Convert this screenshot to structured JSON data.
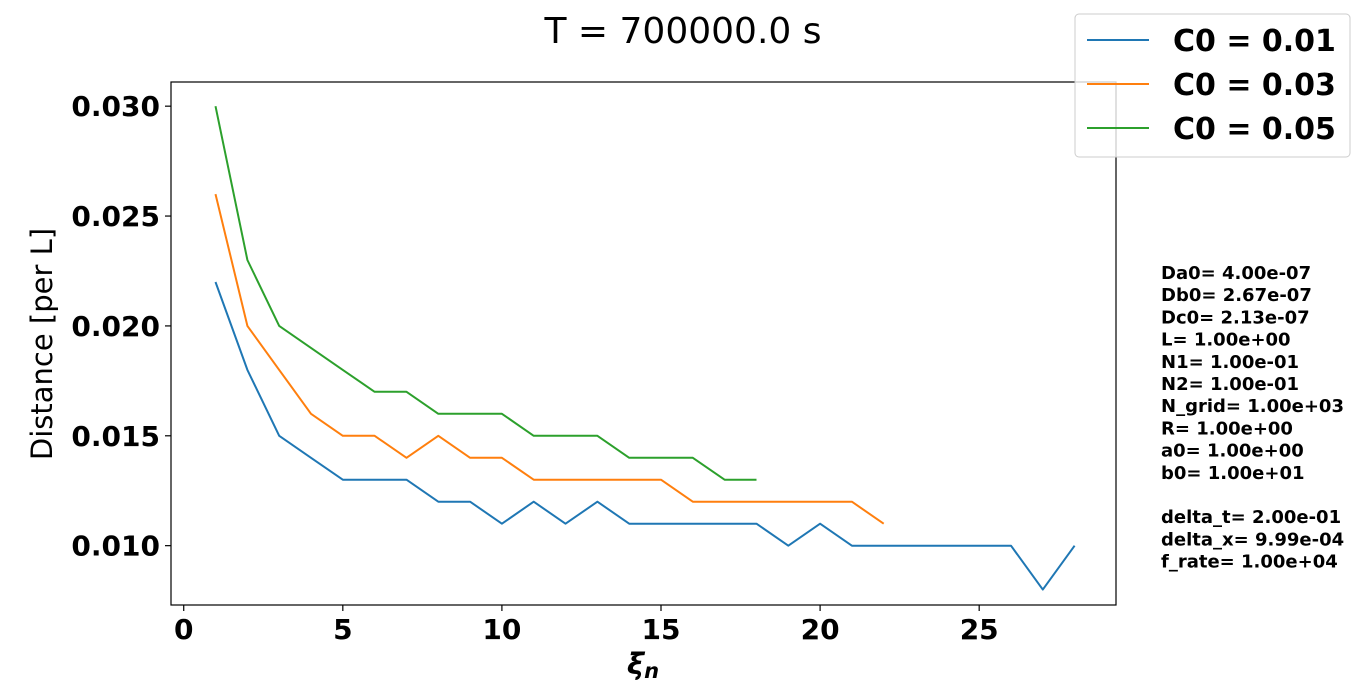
{
  "chart_data": {
    "type": "line",
    "title": "T = 700000.0 s",
    "xlabel": "ξ",
    "xlabel_sub": "n",
    "ylabel": "Distance [per L]",
    "xlim": [
      -0.4,
      29.3
    ],
    "ylim": [
      0.0073,
      0.0311
    ],
    "x_ticks": [
      0,
      5,
      10,
      15,
      20,
      25
    ],
    "x_tick_labels": [
      "0",
      "5",
      "10",
      "15",
      "20",
      "25"
    ],
    "y_ticks": [
      0.01,
      0.015,
      0.02,
      0.025,
      0.03
    ],
    "y_tick_labels": [
      "0.010",
      "0.015",
      "0.020",
      "0.025",
      "0.030"
    ],
    "grid": false,
    "legend_position": "top-right (outside)",
    "series": [
      {
        "name": "C0 = 0.01",
        "color": "#1f77b4",
        "x": [
          1,
          2,
          3,
          4,
          5,
          6,
          7,
          8,
          9,
          10,
          11,
          12,
          13,
          14,
          15,
          16,
          17,
          18,
          19,
          20,
          21,
          22,
          23,
          24,
          25,
          26,
          27,
          28
        ],
        "y": [
          0.022,
          0.018,
          0.015,
          0.014,
          0.013,
          0.013,
          0.013,
          0.012,
          0.012,
          0.011,
          0.012,
          0.011,
          0.012,
          0.011,
          0.011,
          0.011,
          0.011,
          0.011,
          0.01,
          0.011,
          0.01,
          0.01,
          0.01,
          0.01,
          0.01,
          0.01,
          0.008,
          0.01
        ]
      },
      {
        "name": "C0 = 0.03",
        "color": "#ff7f0e",
        "x": [
          1,
          2,
          3,
          4,
          5,
          6,
          7,
          8,
          9,
          10,
          11,
          12,
          13,
          14,
          15,
          16,
          17,
          18,
          19,
          20,
          21,
          22
        ],
        "y": [
          0.026,
          0.02,
          0.018,
          0.016,
          0.015,
          0.015,
          0.014,
          0.015,
          0.014,
          0.014,
          0.013,
          0.013,
          0.013,
          0.013,
          0.013,
          0.012,
          0.012,
          0.012,
          0.012,
          0.012,
          0.012,
          0.011
        ]
      },
      {
        "name": "C0 = 0.05",
        "color": "#2ca02c",
        "x": [
          1,
          2,
          3,
          4,
          5,
          6,
          7,
          8,
          9,
          10,
          11,
          12,
          13,
          14,
          15,
          16,
          17,
          18
        ],
        "y": [
          0.03,
          0.023,
          0.02,
          0.019,
          0.018,
          0.017,
          0.017,
          0.016,
          0.016,
          0.016,
          0.015,
          0.015,
          0.015,
          0.014,
          0.014,
          0.014,
          0.013,
          0.013
        ]
      }
    ],
    "parameters": [
      "Da0= 4.00e-07",
      "Db0= 2.67e-07",
      "Dc0= 2.13e-07",
      "L= 1.00e+00",
      "N1= 1.00e-01",
      "N2= 1.00e-01",
      "N_grid= 1.00e+03",
      "R= 1.00e+00",
      "a0= 1.00e+00",
      "b0= 1.00e+01",
      "",
      "delta_t= 2.00e-01",
      "delta_x= 9.99e-04",
      "f_rate= 1.00e+04"
    ]
  }
}
